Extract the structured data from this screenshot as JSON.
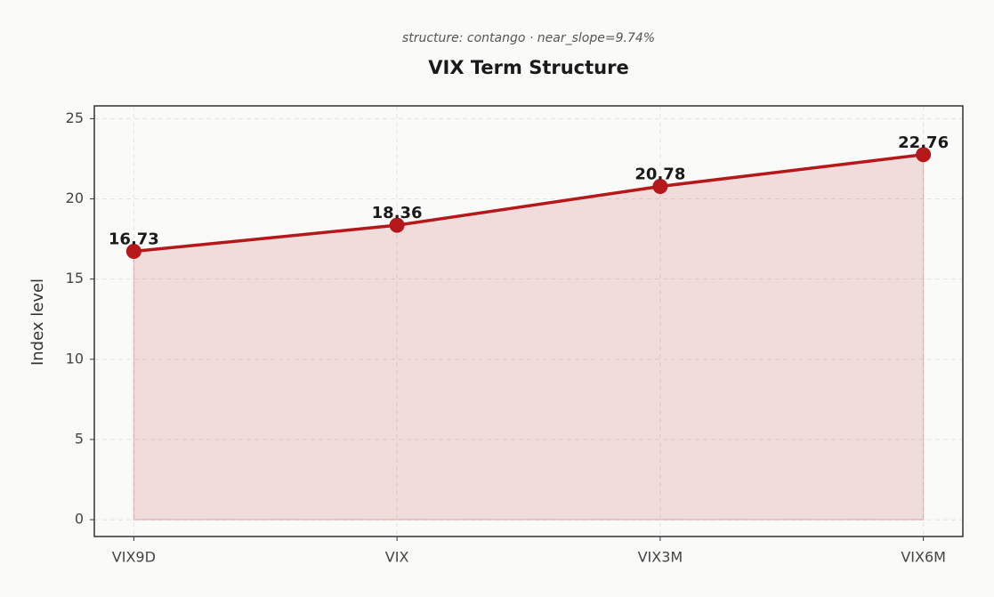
{
  "chart_data": {
    "type": "line",
    "subtitle": "structure: contango · near_slope=9.74%",
    "title": "VIX Term Structure",
    "y_label": "Index level",
    "categories": [
      "VIX9D",
      "VIX",
      "VIX3M",
      "VIX6M"
    ],
    "values": [
      16.73,
      18.36,
      20.78,
      22.76
    ],
    "color": "#b5171a",
    "area": true,
    "ylim": [
      -1.05,
      25.8
    ],
    "yticks": [
      0,
      5,
      10,
      15,
      20,
      25
    ],
    "grid": true
  }
}
